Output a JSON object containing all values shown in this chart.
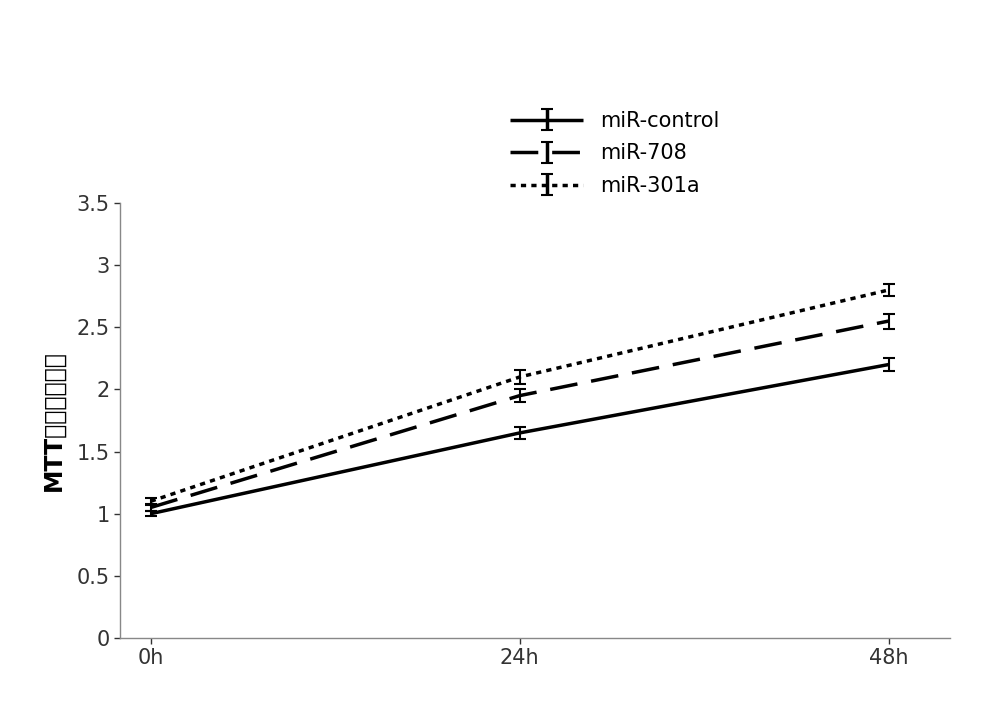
{
  "x": [
    0,
    24,
    48
  ],
  "xtick_labels": [
    "0h",
    "24h",
    "48h"
  ],
  "series": [
    {
      "label": "miR-control",
      "y": [
        1.0,
        1.65,
        2.2
      ],
      "yerr": [
        0.02,
        0.05,
        0.05
      ],
      "linestyle": "solid",
      "linewidth": 2.5,
      "color": "#000000"
    },
    {
      "label": "miR-708",
      "y": [
        1.05,
        1.95,
        2.55
      ],
      "yerr": [
        0.03,
        0.05,
        0.06
      ],
      "linestyle": "dashed",
      "linewidth": 2.5,
      "color": "#000000"
    },
    {
      "label": "miR-301a",
      "y": [
        1.1,
        2.1,
        2.8
      ],
      "yerr": [
        0.03,
        0.06,
        0.05
      ],
      "linestyle": "dotted",
      "linewidth": 2.5,
      "color": "#000000"
    }
  ],
  "ylabel": "MTT细胞增殖能力",
  "ylim": [
    0,
    3.5
  ],
  "yticks": [
    0,
    0.5,
    1.0,
    1.5,
    2.0,
    2.5,
    3.0,
    3.5
  ],
  "xlim": [
    -2,
    52
  ],
  "legend_fontsize": 15,
  "ylabel_fontsize": 17,
  "tick_fontsize": 15,
  "background_color": "#ffffff"
}
